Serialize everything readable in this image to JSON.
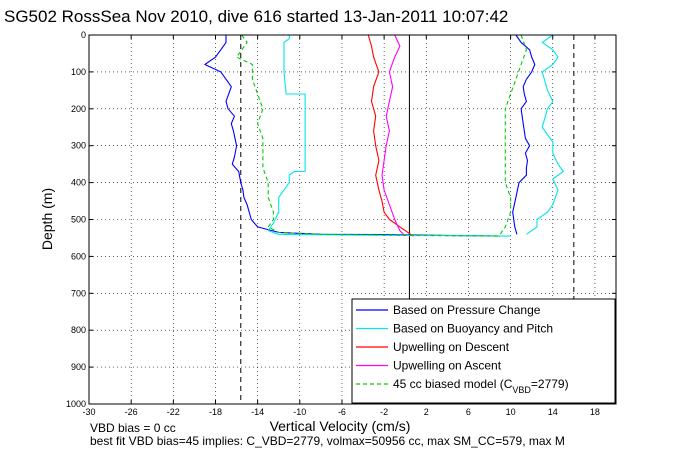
{
  "chart_data": {
    "type": "line",
    "title": "SG502 RossSea Nov 2010, dive 616 started 13-Jan-2011 10:07:42",
    "xlabel": "Vertical Velocity (cm/s)",
    "ylabel": "Depth (m)",
    "xlim": [
      -30,
      20
    ],
    "ylim": [
      1000,
      0
    ],
    "x_ticks": [
      "-30",
      "-26",
      "-22",
      "-18",
      "-14",
      "-10",
      "-6",
      "-2",
      "2",
      "6",
      "10",
      "14",
      "18"
    ],
    "y_ticks": [
      "0",
      "100",
      "200",
      "300",
      "400",
      "500",
      "600",
      "700",
      "800",
      "900",
      "1000"
    ],
    "grid": true,
    "y_reversed": true,
    "legend_position": "bottom-right",
    "reference_lines": [
      {
        "x": -15.6,
        "style": "dashed",
        "color": "#000000"
      },
      {
        "x": 0.4,
        "style": "solid",
        "color": "#000000"
      },
      {
        "x": 16.0,
        "style": "dashed",
        "color": "#000000"
      }
    ],
    "series": [
      {
        "name": "Based on Pressure Change",
        "color": "#0000ff",
        "segments": [
          {
            "x": [
              -17,
              -17,
              -17.5,
              -18,
              -19,
              -17.5,
              -16.5,
              -17,
              -16.8,
              -16.2,
              -16.5,
              -16.3,
              -16.0,
              -16.2,
              -16.4,
              -15.8,
              -15.6,
              -15.4,
              -15.3,
              -15.0,
              -14.8,
              -14.6,
              -14.0,
              -12.0,
              -8.0,
              -2.0,
              4.0,
              9.0
            ],
            "y": [
              0,
              20,
              40,
              60,
              80,
              100,
              140,
              180,
              200,
              220,
              240,
              260,
              300,
              330,
              350,
              370,
              400,
              420,
              440,
              460,
              480,
              500,
              520,
              535,
              540,
              541,
              543,
              545
            ]
          },
          {
            "x": [
              10.5,
              11.0,
              11.8,
              12.0,
              12.3,
              12.0,
              11.5,
              11.2,
              11.3,
              11.5,
              11.0,
              11.2,
              11.4,
              11.8,
              11.4,
              11.6,
              11.5,
              11.5,
              10.8,
              10.5,
              10.2,
              10.4,
              10.6
            ],
            "y": [
              0,
              20,
              40,
              60,
              80,
              100,
              120,
              140,
              160,
              180,
              200,
              240,
              280,
              300,
              320,
              340,
              360,
              380,
              400,
              440,
              480,
              520,
              540
            ]
          }
        ]
      },
      {
        "name": "Based on Buoyancy and Pitch",
        "color": "#00e5ee",
        "segments": [
          {
            "x": [
              -11.0,
              -11.0,
              -11.5,
              -11.5,
              -11.5,
              -11.3,
              -9.5,
              -9.5,
              -9.5,
              -9.5,
              -9.5,
              -9.5,
              -10.5,
              -11.0,
              -11.0,
              -12.0,
              -12.0,
              -12.5,
              -13.0,
              -12.0,
              -10.0,
              -6.0,
              0.0,
              6.0,
              10.0
            ],
            "y": [
              0,
              10,
              20,
              50,
              100,
              160,
              160,
              200,
              250,
              300,
              350,
              370,
              370,
              380,
              400,
              440,
              480,
              510,
              530,
              540,
              541,
              542,
              543,
              544,
              545
            ]
          },
          {
            "x": [
              14.0,
              13.0,
              14.0,
              14.5,
              14.0,
              13.0,
              13.5,
              14.0,
              13.5,
              13.0,
              14.0,
              14.0,
              14.5,
              15.0,
              14.0,
              14.5,
              14.0,
              13.5,
              12.5,
              12.5,
              11.5
            ],
            "y": [
              0,
              20,
              40,
              60,
              80,
              100,
              150,
              180,
              200,
              250,
              290,
              320,
              350,
              370,
              390,
              420,
              460,
              480,
              500,
              520,
              540
            ]
          }
        ]
      },
      {
        "name": "Upwelling on Descent",
        "color": "#ff0000",
        "segments": [
          {
            "x": [
              -3.5,
              -3.2,
              -3.0,
              -2.5,
              -3.0,
              -3.2,
              -2.8,
              -3.0,
              -2.8,
              -2.5,
              -2.8,
              -2.5,
              -2.2,
              -2.0,
              -1.5,
              -1.0,
              -0.5,
              0.0,
              0.5,
              0.8
            ],
            "y": [
              0,
              30,
              60,
              100,
              140,
              180,
              220,
              260,
              300,
              340,
              380,
              420,
              450,
              480,
              500,
              510,
              520,
              530,
              540,
              545
            ]
          }
        ]
      },
      {
        "name": "Upwelling on Ascent",
        "color": "#ff00ff",
        "segments": [
          {
            "x": [
              -1.0,
              -0.5,
              -1.0,
              -1.5,
              -1.2,
              -1.5,
              -1.8,
              -1.5,
              -1.8,
              -2.0,
              -2.2,
              -2.0,
              -1.5,
              -1.0,
              -0.5,
              0.0
            ],
            "y": [
              0,
              30,
              60,
              100,
              140,
              180,
              220,
              260,
              300,
              340,
              380,
              420,
              460,
              500,
              530,
              545
            ]
          }
        ]
      },
      {
        "name": "45 cc biased model (C",
        "name_sub": "VBD",
        "name_suffix": "=2779)",
        "color": "#00cc00",
        "dashed": true,
        "segments": [
          {
            "x": [
              -15.5,
              -15.0,
              -15.5,
              -16.0,
              -14.5,
              -14.5,
              -14.0,
              -13.5,
              -14.0,
              -13.5,
              -13.5,
              -13.5,
              -13.0,
              -13.0,
              -12.5,
              -12.5,
              -13.0,
              -12.0,
              -8.0,
              -2.0,
              4.0,
              9.0
            ],
            "y": [
              0,
              20,
              40,
              60,
              80,
              120,
              160,
              200,
              240,
              280,
              320,
              360,
              400,
              440,
              480,
              500,
              520,
              535,
              540,
              542,
              544,
              545
            ]
          },
          {
            "x": [
              11.0,
              11.5,
              11.0,
              10.5,
              10.0,
              9.5,
              9.5,
              9.5,
              9.5,
              9.5,
              10.0,
              10.0,
              9.5,
              9.0
            ],
            "y": [
              0,
              40,
              80,
              120,
              160,
              200,
              250,
              300,
              350,
              400,
              440,
              480,
              520,
              540
            ]
          }
        ]
      }
    ],
    "annotations": [
      "VBD bias = 0 cc",
      "best fit VBD bias=45 implies: C_VBD=2779, volmax=50956 cc, max SM_CC=579, max M"
    ]
  }
}
